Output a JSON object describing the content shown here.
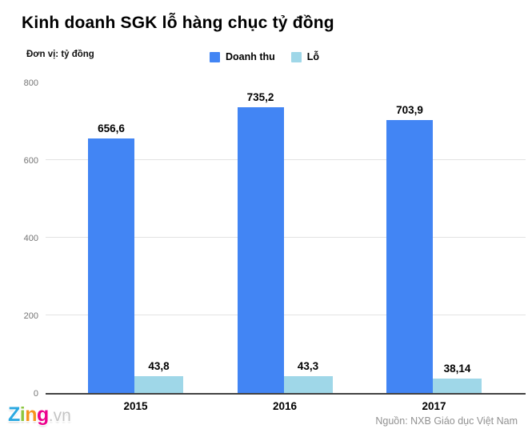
{
  "header": {
    "title": "Kinh doanh SGK lỗ hàng chục tỷ đồng",
    "unit_label": "Đơn vị: tỷ đồng"
  },
  "chart_data": {
    "type": "bar",
    "title": "Kinh doanh SGK lỗ hàng chục tỷ đồng",
    "ylabel": "tỷ đồng",
    "categories": [
      "2015",
      "2016",
      "2017"
    ],
    "series": [
      {
        "name": "Doanh thu",
        "color": "#4285F4",
        "values": [
          656.6,
          735.2,
          703.9
        ],
        "labels": [
          "656,6",
          "735,2",
          "703,9"
        ]
      },
      {
        "name": "Lỗ",
        "color": "#9FD7E8",
        "values": [
          43.8,
          43.3,
          38.14
        ],
        "labels": [
          "43,8",
          "43,3",
          "38,14"
        ]
      }
    ],
    "ylim": [
      0,
      800
    ],
    "yticks": [
      0,
      200,
      400,
      600,
      800
    ],
    "grid": true,
    "legend_position": "top-center",
    "colors": {
      "grid": "#e3e3e3",
      "axis": "#424242",
      "tick_text": "#757575"
    }
  },
  "footer": {
    "source": "Nguồn: NXB Giáo dục Việt Nam",
    "logo": {
      "letters": [
        {
          "char": "Z",
          "color": "#2CA9E1"
        },
        {
          "char": "i",
          "color": "#8DC63F"
        },
        {
          "char": "n",
          "color": "#F6921E"
        },
        {
          "char": "g",
          "color": "#EC008C"
        }
      ],
      "suffix": ".vn"
    }
  }
}
